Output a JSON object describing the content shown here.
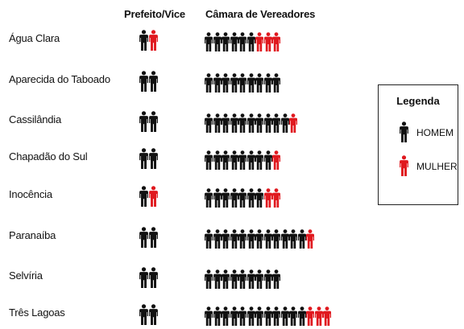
{
  "headers": {
    "prefeito": "Prefeito/Vice",
    "camara": "Câmara de Vereadores"
  },
  "legend": {
    "title": "Legenda",
    "man_label": "HOMEM",
    "woman_label": "MULHER"
  },
  "colors": {
    "man": "#111111",
    "woman": "#e0191f"
  },
  "chart_data": {
    "type": "pictogram",
    "categories": [
      "Água Clara",
      "Aparecida do Taboado",
      "Cassilândia",
      "Chapadão do Sul",
      "Inocência",
      "Paranaíba",
      "Selvíria",
      "Três Lagoas"
    ],
    "series": [
      {
        "name": "Prefeito/Vice – HOMEM",
        "values": [
          1,
          2,
          2,
          2,
          1,
          2,
          2,
          2
        ]
      },
      {
        "name": "Prefeito/Vice – MULHER",
        "values": [
          1,
          0,
          0,
          0,
          1,
          0,
          0,
          0
        ]
      },
      {
        "name": "Câmara de Vereadores – HOMEM",
        "values": [
          6,
          9,
          10,
          8,
          7,
          12,
          9,
          12
        ]
      },
      {
        "name": "Câmara de Vereadores – MULHER",
        "values": [
          3,
          0,
          1,
          1,
          2,
          1,
          0,
          3
        ]
      }
    ]
  }
}
